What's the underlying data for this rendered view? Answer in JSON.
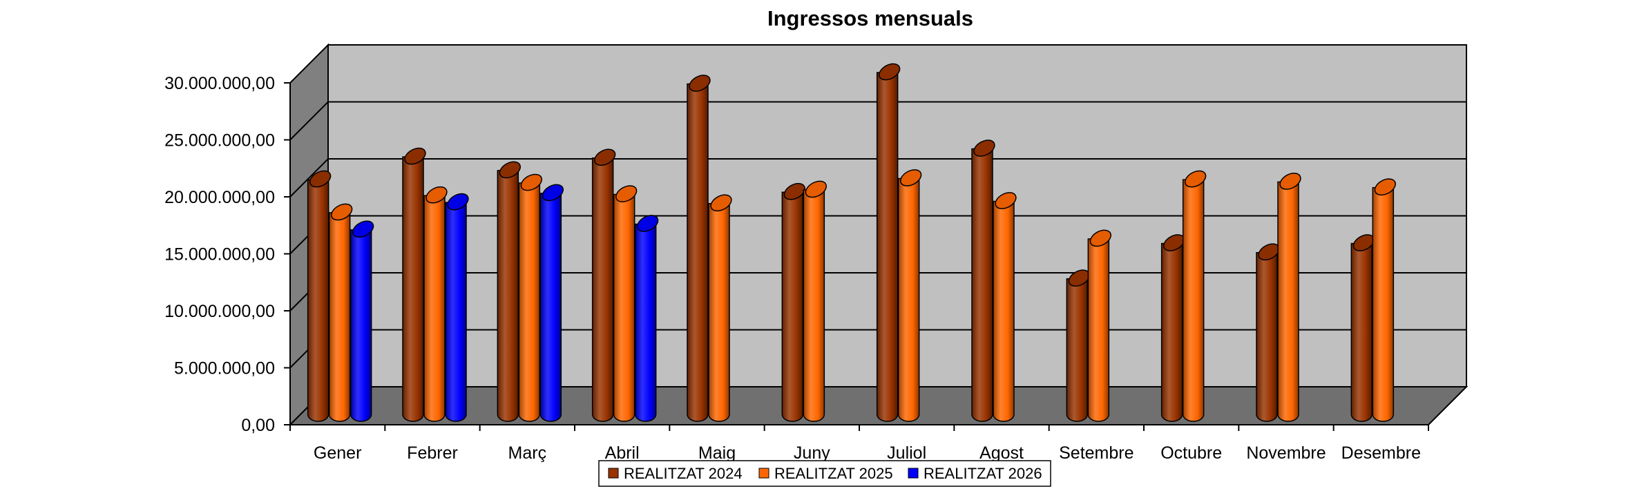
{
  "chart_data": {
    "type": "bar",
    "title": "Ingressos mensuals",
    "xlabel": "",
    "ylabel": "",
    "ylim": [
      0,
      30000000
    ],
    "yticks": [
      0,
      5000000,
      10000000,
      15000000,
      20000000,
      25000000,
      30000000
    ],
    "ytick_labels": [
      "0,00",
      "5.000.000,00",
      "10.000.000,00",
      "15.000.000,00",
      "20.000.000,00",
      "25.000.000,00",
      "30.000.000,00"
    ],
    "categories": [
      "Gener",
      "Febrer",
      "Març",
      "Abril",
      "Maig",
      "Juny",
      "Juliol",
      "Agost",
      "Setembre",
      "Octubre",
      "Novembre",
      "Desembre"
    ],
    "series": [
      {
        "name": "REALITZAT 2024",
        "color": "#993300",
        "values": [
          20600000,
          22600000,
          21400000,
          22500000,
          29000000,
          19500000,
          30000000,
          23300000,
          11900000,
          15000000,
          14200000,
          15000000
        ]
      },
      {
        "name": "REALITZAT 2025",
        "color": "#FF6600",
        "values": [
          17700000,
          19200000,
          20300000,
          19300000,
          18500000,
          19700000,
          20700000,
          18700000,
          15400000,
          20600000,
          20400000,
          19900000
        ]
      },
      {
        "name": "REALITZAT 2026",
        "color": "#0000FF",
        "values": [
          16200000,
          18600000,
          19400000,
          16700000,
          null,
          null,
          null,
          null,
          null,
          null,
          null,
          null
        ]
      }
    ],
    "grid": true,
    "style": "3d-cylinder",
    "legend_position": "bottom"
  }
}
